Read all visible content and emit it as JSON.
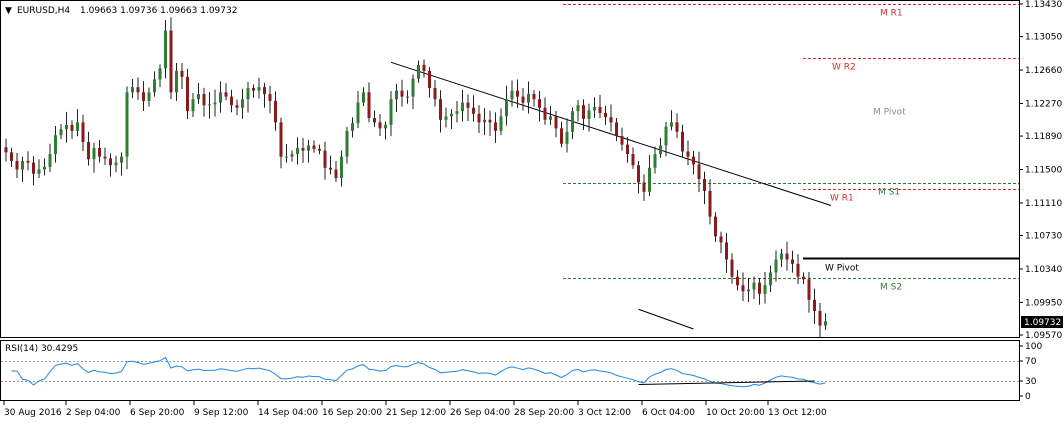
{
  "main_header": {
    "menu_marker": "▼",
    "symbol_tf": "EURUSD,H4",
    "ohlc": "1.09663 1.09736 1.09663 1.09732"
  },
  "rsi_header": "RSI(14) 30.4295",
  "colors": {
    "bull_candle": "#2e7d32",
    "bear_candle": "#8b1a1a",
    "wick": "#222222",
    "rsi_line": "#1e88e5",
    "red_level": "#d32f2f",
    "green_level": "#2e7d32",
    "grey_level": "#8a8a8a",
    "black_level": "#000000",
    "frame": "#000000",
    "price_box_bg": "#000000",
    "price_box_text": "#ffffff"
  },
  "chart_data": [
    {
      "type": "candlestick",
      "symbol": "EURUSD",
      "timeframe": "H4",
      "ylim": [
        1.0957,
        1.1343
      ],
      "y_ticks": [
        "1.13430",
        "1.13050",
        "1.12660",
        "1.12270",
        "1.11890",
        "1.11500",
        "1.11110",
        "1.10730",
        "1.10340",
        "1.09950",
        "1.09570"
      ],
      "y_tick_values": [
        1.1343,
        1.1305,
        1.1266,
        1.1227,
        1.1189,
        1.115,
        1.1111,
        1.1073,
        1.1034,
        1.0995,
        1.0957
      ],
      "x_ticks": [
        "30 Aug 2016",
        "2 Sep 04:00",
        "6 Sep 20:00",
        "9 Sep 12:00",
        "14 Sep 04:00",
        "16 Sep 20:00",
        "21 Sep 12:00",
        "26 Sep 04:00",
        "28 Sep 20:00",
        "3 Oct 12:00",
        "6 Oct 04:00",
        "10 Oct 20:00",
        "13 Oct 12:00"
      ],
      "current_price": "1.09732",
      "close_series": [
        1.117,
        1.116,
        1.115,
        1.116,
        1.1158,
        1.1145,
        1.115,
        1.1153,
        1.1168,
        1.119,
        1.1197,
        1.1202,
        1.1195,
        1.1205,
        1.1182,
        1.1162,
        1.1175,
        1.1165,
        1.1163,
        1.1155,
        1.1158,
        1.1165,
        1.124,
        1.1246,
        1.124,
        1.123,
        1.124,
        1.1255,
        1.1268,
        1.1312,
        1.124,
        1.1265,
        1.1258,
        1.1218,
        1.1232,
        1.1238,
        1.1225,
        1.1226,
        1.1228,
        1.124,
        1.1235,
        1.1225,
        1.1222,
        1.1232,
        1.1245,
        1.1242,
        1.1246,
        1.1238,
        1.123,
        1.1205,
        1.1165,
        1.1165,
        1.1168,
        1.1175,
        1.1172,
        1.1178,
        1.1174,
        1.1172,
        1.1152,
        1.115,
        1.114,
        1.1165,
        1.1195,
        1.1204,
        1.1228,
        1.124,
        1.121,
        1.1205,
        1.1198,
        1.1202,
        1.1232,
        1.1242,
        1.1235,
        1.1235,
        1.1256,
        1.1272,
        1.1265,
        1.1245,
        1.1232,
        1.1208,
        1.1212,
        1.1215,
        1.1218,
        1.1228,
        1.1222,
        1.1215,
        1.1205,
        1.1208,
        1.1205,
        1.1195,
        1.1212,
        1.1232,
        1.1242,
        1.1235,
        1.1228,
        1.1238,
        1.1232,
        1.1222,
        1.1208,
        1.1212,
        1.1198,
        1.118,
        1.1194,
        1.1218,
        1.1225,
        1.1209,
        1.1219,
        1.1223,
        1.1216,
        1.1211,
        1.1205,
        1.1189,
        1.1179,
        1.1168,
        1.1155,
        1.1135,
        1.1124,
        1.1152,
        1.1168,
        1.1178,
        1.12,
        1.1205,
        1.1194,
        1.1171,
        1.1165,
        1.1156,
        1.1139,
        1.1125,
        1.1095,
        1.1072,
        1.1065,
        1.1045,
        1.1025,
        1.1015,
        1.1008,
        1.101,
        1.1018,
        1.1005,
        1.1015,
        1.103,
        1.1045,
        1.1052,
        1.1045,
        1.104,
        1.1025,
        1.1022,
        1.0998,
        1.0985,
        1.0968,
        1.0973
      ],
      "rsi": {
        "name": "RSI(14)",
        "value": "30.4295",
        "levels": [
          70,
          30
        ],
        "ylim": [
          0,
          100
        ],
        "y_ticks": [
          "100",
          "70",
          "30",
          "0"
        ],
        "y_tick_values": [
          100,
          70,
          30,
          0
        ]
      },
      "pivot_levels": [
        {
          "label": "M R1",
          "value": 1.1343,
          "color": "red",
          "style": "dashed"
        },
        {
          "label": "W R2",
          "value": 1.128,
          "color": "red",
          "style": "dashed"
        },
        {
          "label": "M Pivot",
          "value": 1.1227,
          "color": "grey",
          "style": "none"
        },
        {
          "label": "M S1",
          "value": 1.1134,
          "color": "green",
          "style": "dashed"
        },
        {
          "label": "W R1",
          "value": 1.1127,
          "color": "red",
          "style": "dashed"
        },
        {
          "label": "W Pivot",
          "value": 1.1047,
          "color": "black",
          "style": "solid"
        },
        {
          "label": "M S2",
          "value": 1.1023,
          "color": "green",
          "style": "dashed"
        }
      ],
      "trendlines": [
        {
          "from": [
            1.1275,
            70
          ],
          "to": [
            1.1108,
            150
          ]
        },
        {
          "from": [
            1.0987,
            115
          ],
          "to": [
            1.0964,
            125
          ]
        }
      ]
    }
  ]
}
